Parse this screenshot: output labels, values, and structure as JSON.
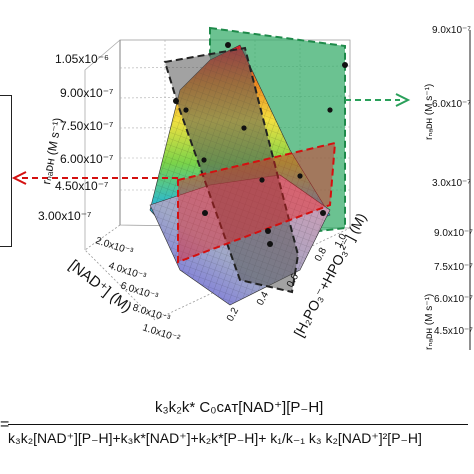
{
  "chart_data": {
    "type": "surface3d",
    "z_axis": {
      "label": "rₙₐᴅʜ (M s⁻¹)",
      "ticks": [
        "3.00x10⁻⁷",
        "4.50x10⁻⁷",
        "6.00x10⁻⁷",
        "7.50x10⁻⁷",
        "9.00x10⁻⁷",
        "1.05x10⁻⁶"
      ]
    },
    "x_axis": {
      "label": "[NAD⁺] (M)",
      "ticks": [
        "2.0x10⁻³",
        "4.0x10⁻³",
        "6.0x10⁻³",
        "8.0x10⁻³",
        "1.0x10⁻²"
      ]
    },
    "y_axis": {
      "label": "[H₂PO₃⁻+HPO₃²⁻] (M)",
      "ticks": [
        "0.2",
        "0.4",
        "0.6",
        "0.8",
        "1.0"
      ]
    },
    "right_top_axis": {
      "label": "rₙₐᴅʜ (M s⁻¹)",
      "ticks": [
        "9.0x10⁻⁷",
        "6.0x10⁻⁷",
        "3.0x10⁻⁷"
      ]
    },
    "right_bottom_axis": {
      "label": "rₙₐᴅʜ (M s⁻¹)",
      "ticks": [
        "9.0x10⁻⁷",
        "7.5x10⁻⁷",
        "6.0x10⁻⁷",
        "4.5x10⁻⁷"
      ]
    },
    "planes": [
      {
        "name": "green",
        "color": "#2ea86a"
      },
      {
        "name": "red",
        "color": "#e02020"
      },
      {
        "name": "gray",
        "color": "#444444"
      }
    ]
  },
  "equation": {
    "lhs": "=",
    "numerator": "k₃k₂k* C₀ᴄᴀᴛ[NAD⁺][P₋H]",
    "denominator": "k₃k₂[NAD⁺][P₋H]+k₃k*[NAD⁺]+k₂k*[P₋H]+ k₁/k₋₁ k₃ k₂[NAD⁺]²[P₋H]"
  }
}
